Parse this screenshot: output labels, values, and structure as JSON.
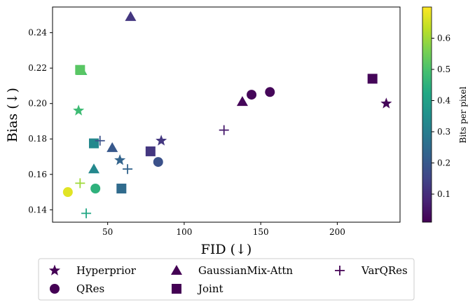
{
  "chart_data": {
    "type": "scatter",
    "xlabel": "FID (↓)",
    "ylabel": "Bias (↓)",
    "xlim": [
      14,
      241
    ],
    "ylim": [
      0.133,
      0.2545
    ],
    "xticks": [
      50,
      100,
      150,
      200
    ],
    "yticks": [
      0.14,
      0.16,
      0.18,
      0.2,
      0.22,
      0.24
    ],
    "grid": false,
    "colormap": "viridis",
    "colorbar": {
      "label": "Bits per pixel",
      "range": [
        0.01,
        0.7
      ],
      "ticks": [
        0.1,
        0.2,
        0.3,
        0.4,
        0.5,
        0.6
      ]
    },
    "legend_placement": "bottom",
    "series": [
      {
        "name": "Hyperprior",
        "marker": "star",
        "points": [
          {
            "x": 232,
            "y": 0.2,
            "bpp": 0.02
          },
          {
            "x": 85,
            "y": 0.179,
            "bpp": 0.12
          },
          {
            "x": 58,
            "y": 0.168,
            "bpp": 0.23
          },
          {
            "x": 31,
            "y": 0.196,
            "bpp": 0.48
          }
        ]
      },
      {
        "name": "QRes",
        "marker": "circle",
        "points": [
          {
            "x": 156,
            "y": 0.2065,
            "bpp": 0.02
          },
          {
            "x": 144,
            "y": 0.205,
            "bpp": 0.02
          },
          {
            "x": 83,
            "y": 0.167,
            "bpp": 0.18
          },
          {
            "x": 42,
            "y": 0.152,
            "bpp": 0.45
          },
          {
            "x": 24,
            "y": 0.15,
            "bpp": 0.67
          }
        ]
      },
      {
        "name": "GaussianMix-Attn",
        "marker": "triangle",
        "points": [
          {
            "x": 65,
            "y": 0.249,
            "bpp": 0.12
          },
          {
            "x": 138,
            "y": 0.201,
            "bpp": 0.02
          },
          {
            "x": 53,
            "y": 0.175,
            "bpp": 0.2
          },
          {
            "x": 41,
            "y": 0.163,
            "bpp": 0.33
          },
          {
            "x": 33,
            "y": 0.2185,
            "bpp": 0.5
          }
        ]
      },
      {
        "name": "Joint",
        "marker": "square",
        "points": [
          {
            "x": 223,
            "y": 0.214,
            "bpp": 0.02
          },
          {
            "x": 78,
            "y": 0.173,
            "bpp": 0.12
          },
          {
            "x": 59,
            "y": 0.152,
            "bpp": 0.25
          },
          {
            "x": 41,
            "y": 0.1775,
            "bpp": 0.33
          },
          {
            "x": 32,
            "y": 0.219,
            "bpp": 0.52
          }
        ]
      },
      {
        "name": "VarQRes",
        "marker": "plus",
        "points": [
          {
            "x": 126,
            "y": 0.185,
            "bpp": 0.06
          },
          {
            "x": 45,
            "y": 0.179,
            "bpp": 0.18
          },
          {
            "x": 63,
            "y": 0.163,
            "bpp": 0.23
          },
          {
            "x": 32,
            "y": 0.155,
            "bpp": 0.6
          },
          {
            "x": 36,
            "y": 0.138,
            "bpp": 0.42
          }
        ]
      }
    ]
  },
  "legend_marker_color": "#440154"
}
